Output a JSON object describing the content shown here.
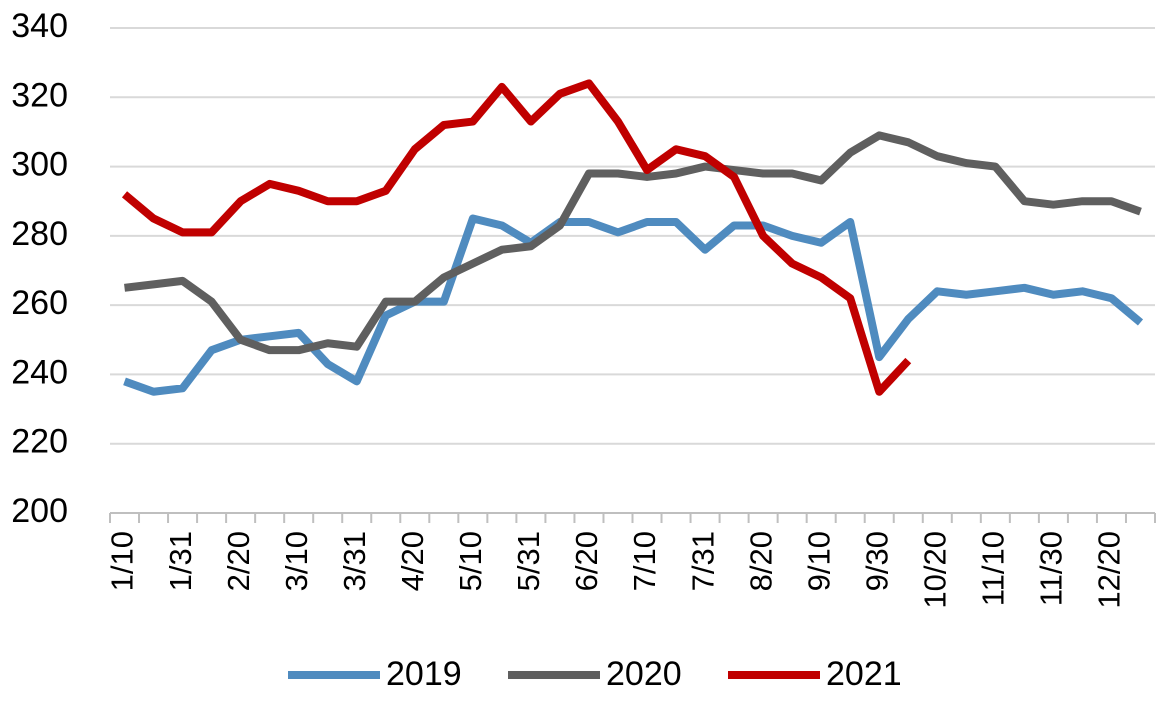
{
  "chart_data": {
    "type": "line",
    "categories": [
      "1/10",
      null,
      "1/31",
      null,
      "2/20",
      null,
      "3/10",
      null,
      "3/31",
      null,
      "4/20",
      null,
      "5/10",
      null,
      "5/31",
      null,
      "6/20",
      null,
      "7/10",
      null,
      "7/31",
      null,
      "8/20",
      null,
      "9/10",
      null,
      "9/30",
      null,
      "10/20",
      null,
      "11/10",
      null,
      "11/30",
      null,
      "12/20",
      null
    ],
    "series": [
      {
        "name": "2019",
        "color": "#4f8bbf",
        "values": [
          238,
          235,
          236,
          247,
          250,
          251,
          252,
          243,
          238,
          257,
          261,
          261,
          285,
          283,
          278,
          284,
          284,
          281,
          284,
          284,
          276,
          283,
          283,
          280,
          278,
          284,
          245,
          256,
          264,
          263,
          264,
          265,
          263,
          264,
          262,
          255
        ]
      },
      {
        "name": "2020",
        "color": "#5f5f5f",
        "values": [
          265,
          266,
          267,
          261,
          250,
          247,
          247,
          249,
          248,
          261,
          261,
          268,
          272,
          276,
          277,
          283,
          298,
          298,
          297,
          298,
          300,
          299,
          298,
          298,
          296,
          304,
          309,
          307,
          303,
          301,
          300,
          290,
          289,
          290,
          290,
          287
        ]
      },
      {
        "name": "2021",
        "color": "#c00000",
        "values": [
          292,
          285,
          281,
          281,
          290,
          295,
          293,
          290,
          290,
          293,
          305,
          312,
          313,
          323,
          313,
          321,
          324,
          313,
          299,
          305,
          303,
          297,
          280,
          272,
          268,
          262,
          235,
          244,
          null,
          null,
          null,
          null,
          null,
          null,
          null,
          null
        ]
      }
    ],
    "ylim": [
      200,
      340
    ],
    "yticks": [
      200,
      220,
      240,
      260,
      280,
      300,
      320,
      340
    ],
    "grid": true,
    "legend": "bottom"
  }
}
